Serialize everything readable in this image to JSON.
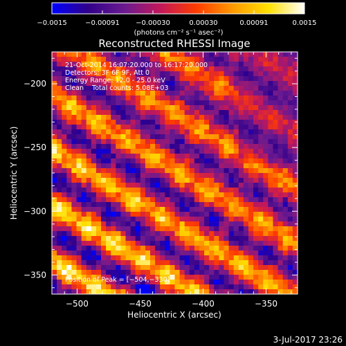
{
  "footer": {
    "timestamp": "3-Jul-2017 23:26"
  },
  "colorbar": {
    "ticks": [
      "−0.0015",
      "−0.00091",
      "−0.00030",
      "0.00030",
      "0.00091",
      "0.0015"
    ],
    "range": [
      -0.0015,
      0.0015
    ],
    "unit_label": "(photons cm⁻² s⁻¹ asec⁻²)",
    "colormap_stops": [
      "#0000ff",
      "#30008a",
      "#6a1a90",
      "#c2185b",
      "#ff3b00",
      "#ff9900",
      "#ffe000",
      "#ffffff"
    ]
  },
  "chart_data": {
    "type": "heatmap",
    "title": "Reconstructed RHESSI Image",
    "xlabel": "Heliocentric X (arcsec)",
    "ylabel": "Heliocentric Y (arcsec)",
    "xlim": [
      -520,
      -325
    ],
    "ylim": [
      -365,
      -175
    ],
    "xticks": [
      -500,
      -450,
      -400,
      -350
    ],
    "yticks": [
      -350,
      -300,
      -250,
      -200
    ],
    "xtick_labels": [
      "−500",
      "−450",
      "−400",
      "−350"
    ],
    "ytick_labels": [
      "−350",
      "−300",
      "−250",
      "−200"
    ],
    "pattern": "diagonal stripes, upper-left to lower-right; brighter toward lower-left",
    "annotations": [
      "21-Oct-2014 16:07:20.000 to 16:17:20.000",
      "Detectors: 3F 6F 9F, Att 0",
      "Energy Range: 12.0 - 25.0 keV",
      "Clean    Total counts: 5.08E+03"
    ],
    "peak_label": "Position of Peak = [−504,−330]",
    "peak": [
      -504,
      -330
    ]
  }
}
